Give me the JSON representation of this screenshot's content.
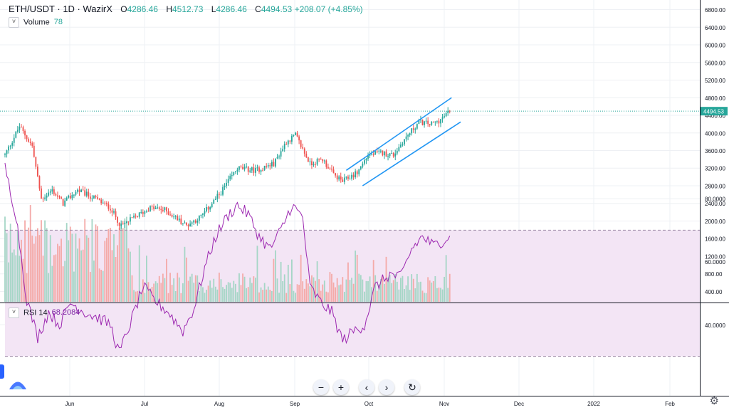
{
  "header": {
    "symbol": "ETH/USDT · 1D · WazirX",
    "o_label": "O",
    "o_value": "4286.46",
    "h_label": "H",
    "h_value": "4512.73",
    "l_label": "L",
    "l_value": "4286.46",
    "c_label": "C",
    "c_value": "4494.53",
    "change": "+208.07 (+4.85%)"
  },
  "volume_legend": {
    "label": "Volume",
    "value": "78"
  },
  "rsi_legend": {
    "label": "RSI 14",
    "value": "68.2084"
  },
  "colors": {
    "up": "#26a69a",
    "down": "#ef5350",
    "upVol": "#a5d6c6",
    "downVol": "#f4aaa8",
    "channel": "#2196f3",
    "rsi": "#9c27b0",
    "rsiBand": "#f3e5f5",
    "grid": "#eef0f4"
  },
  "icons": {
    "zoom_out": "minus-icon",
    "zoom_in": "plus-icon",
    "scroll_left": "chevron-left-icon",
    "scroll_right": "chevron-right-icon",
    "reset": "reset-icon",
    "settings": "gear-icon"
  },
  "controls": {
    "zoom_out": "−",
    "zoom_in": "+",
    "left": "‹",
    "right": "›",
    "reset": "↻",
    "settings": "⚙"
  },
  "chart_data": {
    "type": "candlestick",
    "price_axis": {
      "ticks": [
        400,
        800,
        1200,
        1600,
        2000,
        2400,
        2800,
        3200,
        3600,
        4000,
        4400,
        4800,
        5200,
        5600,
        6000,
        6400,
        6800
      ],
      "labels": [
        "400.00",
        "800.00",
        "1200.00",
        "1600.00",
        "2000.00",
        "2400.00",
        "2800.00",
        "3200.00",
        "3600.00",
        "4000.00",
        "4400.00",
        "4800.00",
        "5200.00",
        "5600.00",
        "6000.00",
        "6400.00",
        "6800.00"
      ]
    },
    "last_price": "4494.53",
    "rsi_axis": {
      "ticks": [
        40,
        60,
        80
      ],
      "labels": [
        "40.0000",
        "60.0000",
        "80.0000"
      ],
      "band": [
        30,
        70
      ]
    },
    "time_axis": {
      "labels": [
        "Jun",
        "Jul",
        "Aug",
        "Sep",
        "Oct",
        "Nov",
        "Dec",
        "2022",
        "Feb"
      ]
    },
    "close_anchors": [
      {
        "d": 0,
        "c": 3500
      },
      {
        "d": 8,
        "c": 4150
      },
      {
        "d": 15,
        "c": 3700
      },
      {
        "d": 20,
        "c": 2500
      },
      {
        "d": 26,
        "c": 2700
      },
      {
        "d": 32,
        "c": 2400
      },
      {
        "d": 40,
        "c": 2700
      },
      {
        "d": 50,
        "c": 2500
      },
      {
        "d": 58,
        "c": 2300
      },
      {
        "d": 64,
        "c": 1880
      },
      {
        "d": 70,
        "c": 2050
      },
      {
        "d": 80,
        "c": 2300
      },
      {
        "d": 88,
        "c": 2250
      },
      {
        "d": 100,
        "c": 1900
      },
      {
        "d": 108,
        "c": 2100
      },
      {
        "d": 118,
        "c": 2600
      },
      {
        "d": 128,
        "c": 3200
      },
      {
        "d": 138,
        "c": 3150
      },
      {
        "d": 148,
        "c": 3300
      },
      {
        "d": 155,
        "c": 3800
      },
      {
        "d": 160,
        "c": 3950
      },
      {
        "d": 168,
        "c": 3300
      },
      {
        "d": 175,
        "c": 3400
      },
      {
        "d": 181,
        "c": 3050
      },
      {
        "d": 186,
        "c": 2900
      },
      {
        "d": 194,
        "c": 3100
      },
      {
        "d": 200,
        "c": 3500
      },
      {
        "d": 207,
        "c": 3550
      },
      {
        "d": 214,
        "c": 3500
      },
      {
        "d": 219,
        "c": 3800
      },
      {
        "d": 228,
        "c": 4250
      },
      {
        "d": 235,
        "c": 4200
      },
      {
        "d": 240,
        "c": 4300
      },
      {
        "d": 245,
        "c": 4494
      }
    ],
    "channel_upper": [
      {
        "d": 188,
        "price": 3150
      },
      {
        "d": 246,
        "price": 4800
      }
    ],
    "channel_lower": [
      {
        "d": 197,
        "price": 2800
      },
      {
        "d": 251,
        "price": 4250
      }
    ],
    "rsi_anchors": [
      {
        "d": 0,
        "v": 90
      },
      {
        "d": 6,
        "v": 75
      },
      {
        "d": 12,
        "v": 48
      },
      {
        "d": 18,
        "v": 36
      },
      {
        "d": 24,
        "v": 44
      },
      {
        "d": 30,
        "v": 40
      },
      {
        "d": 36,
        "v": 47
      },
      {
        "d": 44,
        "v": 44
      },
      {
        "d": 52,
        "v": 42
      },
      {
        "d": 58,
        "v": 40
      },
      {
        "d": 63,
        "v": 31
      },
      {
        "d": 70,
        "v": 42
      },
      {
        "d": 76,
        "v": 52
      },
      {
        "d": 82,
        "v": 48
      },
      {
        "d": 90,
        "v": 44
      },
      {
        "d": 98,
        "v": 38
      },
      {
        "d": 104,
        "v": 45
      },
      {
        "d": 110,
        "v": 58
      },
      {
        "d": 116,
        "v": 68
      },
      {
        "d": 122,
        "v": 74
      },
      {
        "d": 128,
        "v": 78
      },
      {
        "d": 134,
        "v": 75
      },
      {
        "d": 140,
        "v": 68
      },
      {
        "d": 146,
        "v": 64
      },
      {
        "d": 152,
        "v": 70
      },
      {
        "d": 158,
        "v": 78
      },
      {
        "d": 164,
        "v": 74
      },
      {
        "d": 168,
        "v": 52
      },
      {
        "d": 174,
        "v": 47
      },
      {
        "d": 180,
        "v": 44
      },
      {
        "d": 186,
        "v": 35
      },
      {
        "d": 192,
        "v": 38
      },
      {
        "d": 198,
        "v": 40
      },
      {
        "d": 204,
        "v": 52
      },
      {
        "d": 212,
        "v": 56
      },
      {
        "d": 218,
        "v": 55
      },
      {
        "d": 224,
        "v": 64
      },
      {
        "d": 230,
        "v": 68
      },
      {
        "d": 236,
        "v": 65
      },
      {
        "d": 242,
        "v": 67
      },
      {
        "d": 245,
        "v": 68.2
      }
    ]
  }
}
